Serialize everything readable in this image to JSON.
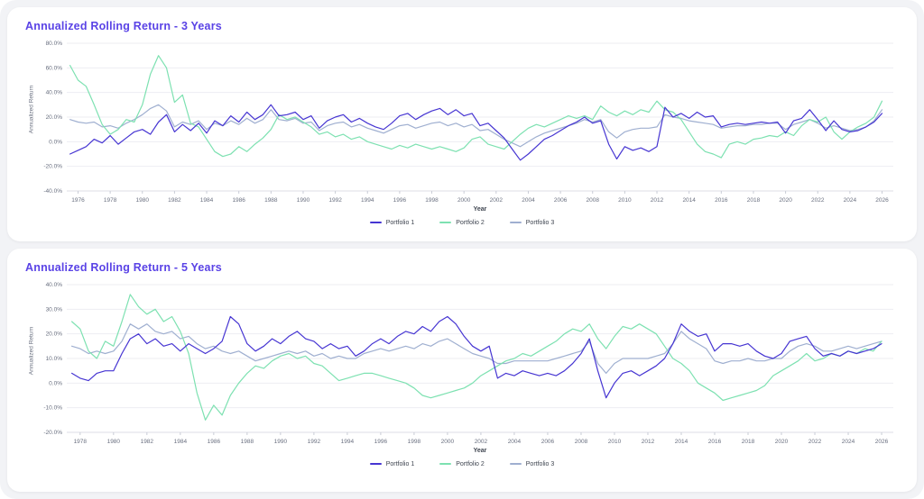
{
  "theme": {
    "page_background": "#f2f3f6",
    "card_background": "#ffffff",
    "title_color": "#5a43e6",
    "grid_color": "#ededf2",
    "axis_line_color": "#dcdee6",
    "tick_text_color": "#6a7080",
    "legend_text_color": "#3f4550"
  },
  "chart_data": [
    {
      "type": "line",
      "title": "Annualized Rolling Return - 3 Years",
      "xlabel": "Year",
      "ylabel": "Annualized Return",
      "grid": "horizontal",
      "legend_position": "bottom-center",
      "xlim": [
        1975.3,
        2026.7
      ],
      "ylim": [
        -40,
        80
      ],
      "y_ticks": [
        80,
        60,
        40,
        20,
        0,
        -20,
        -40
      ],
      "y_tick_labels": [
        "80.0%",
        "60.0%",
        "40.0%",
        "20.0%",
        "0.0%",
        "-20.0%",
        "-40.0%"
      ],
      "x_ticks": [
        1976,
        1978,
        1980,
        1982,
        1984,
        1986,
        1988,
        1990,
        1992,
        1994,
        1996,
        1998,
        2000,
        2002,
        2004,
        2006,
        2008,
        2010,
        2012,
        2014,
        2016,
        2018,
        2020,
        2022,
        2024,
        2026
      ],
      "x_start": 1975.5,
      "x_step": 0.5,
      "x_count": 102,
      "unit": "percent",
      "series": [
        {
          "name": "Portfolio 1",
          "color": "#4635d2",
          "values": [
            -10,
            -7,
            -4,
            2,
            -1,
            5,
            -2,
            3,
            8,
            10,
            6,
            16,
            22,
            8,
            14,
            9,
            15,
            7,
            17,
            13,
            21,
            16,
            24,
            18,
            22,
            30,
            21,
            22,
            24,
            18,
            21,
            11,
            17,
            20,
            22,
            16,
            19,
            15,
            12,
            10,
            15,
            21,
            23,
            18,
            22,
            25,
            27,
            22,
            26,
            21,
            23,
            13,
            15,
            9,
            3,
            -6,
            -15,
            -10,
            -4,
            2,
            5,
            9,
            13,
            16,
            20,
            15,
            17,
            -2,
            -14,
            -4,
            -7,
            -5,
            -8,
            -4,
            28,
            20,
            23,
            19,
            24,
            20,
            21,
            12,
            14,
            15,
            14,
            15,
            16,
            15,
            16,
            7,
            17,
            19,
            26,
            18,
            9,
            17,
            10,
            8,
            9,
            12,
            16,
            23
          ]
        },
        {
          "name": "Portfolio 2",
          "color": "#7de1b1",
          "values": [
            62,
            50,
            45,
            30,
            14,
            6,
            10,
            18,
            16,
            30,
            55,
            70,
            60,
            32,
            38,
            15,
            12,
            2,
            -8,
            -12,
            -10,
            -4,
            -8,
            -2,
            3,
            10,
            22,
            18,
            20,
            16,
            12,
            6,
            8,
            4,
            6,
            2,
            4,
            0,
            -2,
            -4,
            -6,
            -3,
            -5,
            -2,
            -4,
            -6,
            -4,
            -6,
            -8,
            -5,
            2,
            4,
            -2,
            -4,
            -6,
            0,
            6,
            11,
            14,
            12,
            15,
            18,
            21,
            19,
            21,
            18,
            29,
            24,
            21,
            25,
            22,
            26,
            24,
            33,
            26,
            24,
            18,
            8,
            -2,
            -8,
            -10,
            -13,
            -2,
            0,
            -2,
            2,
            3,
            5,
            4,
            8,
            5,
            13,
            18,
            16,
            20,
            8,
            2,
            8,
            12,
            15,
            20,
            33
          ]
        },
        {
          "name": "Portfolio 3",
          "color": "#9fafd0",
          "values": [
            18,
            16,
            15,
            16,
            12,
            13,
            11,
            15,
            18,
            22,
            27,
            30,
            25,
            12,
            16,
            14,
            17,
            10,
            15,
            13,
            17,
            14,
            19,
            15,
            18,
            26,
            18,
            17,
            19,
            15,
            16,
            9,
            13,
            15,
            16,
            12,
            14,
            11,
            9,
            7,
            10,
            13,
            14,
            11,
            13,
            15,
            16,
            13,
            15,
            12,
            14,
            9,
            10,
            6,
            2,
            -1,
            -4,
            0,
            4,
            7,
            9,
            11,
            13,
            15,
            18,
            16,
            18,
            8,
            3,
            8,
            10,
            11,
            11,
            12,
            22,
            20,
            19,
            17,
            16,
            15,
            14,
            11,
            12,
            13,
            13,
            14,
            14,
            15,
            15,
            10,
            14,
            16,
            18,
            15,
            11,
            13,
            11,
            9,
            10,
            12,
            17,
            26
          ]
        }
      ]
    },
    {
      "type": "line",
      "title": "Annualized Rolling Return - 5 Years",
      "xlabel": "Year",
      "ylabel": "Annualized Return",
      "grid": "horizontal",
      "legend_position": "bottom-center",
      "xlim": [
        1977.2,
        2026.7
      ],
      "ylim": [
        -20,
        40
      ],
      "y_ticks": [
        40,
        30,
        20,
        10,
        0,
        -10,
        -20
      ],
      "y_tick_labels": [
        "40.0%",
        "30.0%",
        "20.0%",
        "10.0%",
        "0.0%",
        "-10.0%",
        "-20.0%"
      ],
      "x_ticks": [
        1978,
        1980,
        1982,
        1984,
        1986,
        1988,
        1990,
        1992,
        1994,
        1996,
        1998,
        2000,
        2002,
        2004,
        2006,
        2008,
        2010,
        2012,
        2014,
        2016,
        2018,
        2020,
        2022,
        2024,
        2026
      ],
      "x_start": 1977.5,
      "x_step": 0.5,
      "x_count": 98,
      "unit": "percent",
      "series": [
        {
          "name": "Portfolio 1",
          "color": "#4635d2",
          "values": [
            4,
            2,
            1,
            4,
            5,
            5,
            12,
            18,
            20,
            16,
            18,
            15,
            16,
            13,
            16,
            14,
            12,
            14,
            17,
            27,
            24,
            16,
            13,
            15,
            18,
            16,
            19,
            21,
            18,
            17,
            14,
            16,
            14,
            15,
            11,
            13,
            16,
            18,
            16,
            19,
            21,
            20,
            23,
            21,
            25,
            27,
            24,
            19,
            15,
            13,
            15,
            2,
            4,
            3,
            5,
            4,
            3,
            4,
            3,
            5,
            8,
            12,
            18,
            5,
            -6,
            0,
            4,
            5,
            3,
            5,
            7,
            10,
            16,
            24,
            21,
            19,
            20,
            13,
            16,
            16,
            15,
            16,
            13,
            11,
            10,
            12,
            17,
            18,
            19,
            14,
            11,
            12,
            11,
            13,
            12,
            13,
            14,
            16
          ]
        },
        {
          "name": "Portfolio 2",
          "color": "#7de1b1",
          "values": [
            25,
            22,
            13,
            10,
            17,
            15,
            25,
            36,
            31,
            28,
            30,
            25,
            27,
            21,
            12,
            -4,
            -15,
            -9,
            -13,
            -5,
            0,
            4,
            7,
            6,
            9,
            11,
            12,
            10,
            11,
            8,
            7,
            4,
            1,
            2,
            3,
            4,
            4,
            3,
            2,
            1,
            0,
            -2,
            -5,
            -6,
            -5,
            -4,
            -3,
            -2,
            0,
            3,
            5,
            7,
            9,
            10,
            12,
            11,
            13,
            15,
            17,
            20,
            22,
            21,
            24,
            18,
            14,
            19,
            23,
            22,
            24,
            22,
            20,
            15,
            10,
            8,
            5,
            0,
            -2,
            -4,
            -7,
            -6,
            -5,
            -4,
            -3,
            -1,
            3,
            5,
            7,
            9,
            12,
            9,
            10,
            12,
            11,
            13,
            12,
            14,
            13,
            17
          ]
        },
        {
          "name": "Portfolio 3",
          "color": "#9fafd0",
          "values": [
            15,
            14,
            12,
            13,
            12,
            13,
            17,
            24,
            22,
            24,
            21,
            20,
            21,
            18,
            19,
            16,
            14,
            15,
            13,
            12,
            13,
            11,
            9,
            10,
            11,
            12,
            13,
            12,
            13,
            11,
            12,
            10,
            11,
            10,
            10,
            12,
            13,
            14,
            13,
            14,
            15,
            14,
            16,
            15,
            17,
            18,
            16,
            14,
            12,
            11,
            10,
            8,
            8,
            9,
            9,
            9,
            9,
            9,
            10,
            11,
            12,
            13,
            17,
            8,
            4,
            8,
            10,
            10,
            10,
            10,
            11,
            12,
            16,
            21,
            18,
            16,
            14,
            9,
            8,
            9,
            9,
            10,
            9,
            9,
            10,
            10,
            13,
            15,
            16,
            15,
            13,
            13,
            14,
            15,
            14,
            15,
            16,
            17
          ]
        }
      ]
    }
  ]
}
